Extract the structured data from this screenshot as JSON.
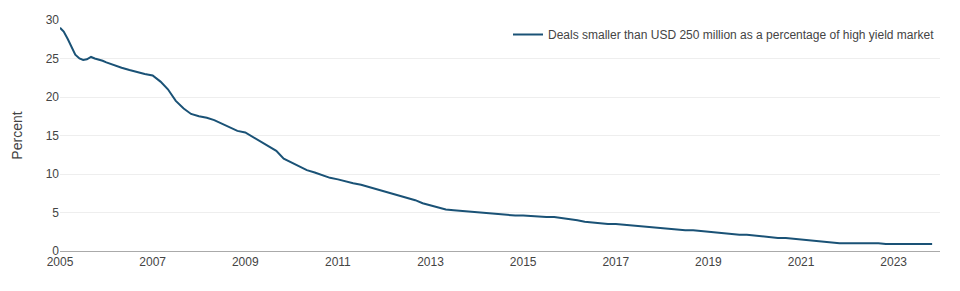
{
  "chart_data": {
    "type": "line",
    "ylabel": "Percent",
    "x": [
      2005.0,
      2005.08,
      2005.17,
      2005.25,
      2005.33,
      2005.42,
      2005.5,
      2005.58,
      2005.67,
      2005.75,
      2005.83,
      2005.92,
      2006.0,
      2006.17,
      2006.33,
      2006.5,
      2006.67,
      2006.83,
      2007.0,
      2007.17,
      2007.33,
      2007.5,
      2007.67,
      2007.83,
      2008.0,
      2008.17,
      2008.33,
      2008.5,
      2008.67,
      2008.83,
      2009.0,
      2009.17,
      2009.33,
      2009.5,
      2009.67,
      2009.83,
      2010.0,
      2010.17,
      2010.33,
      2010.5,
      2010.67,
      2010.83,
      2011.0,
      2011.17,
      2011.33,
      2011.5,
      2011.67,
      2011.83,
      2012.0,
      2012.17,
      2012.33,
      2012.5,
      2012.67,
      2012.83,
      2013.0,
      2013.17,
      2013.33,
      2013.5,
      2013.67,
      2013.83,
      2014.0,
      2014.17,
      2014.33,
      2014.5,
      2014.67,
      2014.83,
      2015.0,
      2015.17,
      2015.33,
      2015.5,
      2015.67,
      2015.83,
      2016.0,
      2016.17,
      2016.33,
      2016.5,
      2016.67,
      2016.83,
      2017.0,
      2017.17,
      2017.33,
      2017.5,
      2017.67,
      2017.83,
      2018.0,
      2018.17,
      2018.33,
      2018.5,
      2018.67,
      2018.83,
      2019.0,
      2019.17,
      2019.33,
      2019.5,
      2019.67,
      2019.83,
      2020.0,
      2020.17,
      2020.33,
      2020.5,
      2020.67,
      2020.83,
      2021.0,
      2021.17,
      2021.33,
      2021.5,
      2021.67,
      2021.83,
      2022.0,
      2022.17,
      2022.33,
      2022.5,
      2022.67,
      2022.83,
      2023.0,
      2023.17,
      2023.33,
      2023.5,
      2023.67,
      2023.83
    ],
    "series": [
      {
        "name": "Deals smaller than USD 250 million as a percentage of high yield market",
        "color": "#1a5276",
        "values": [
          29.0,
          28.5,
          27.5,
          26.5,
          25.5,
          25.0,
          24.8,
          24.9,
          25.2,
          25.0,
          24.9,
          24.7,
          24.5,
          24.1,
          23.8,
          23.5,
          23.2,
          23.0,
          22.8,
          22.0,
          21.0,
          19.5,
          18.5,
          17.8,
          17.5,
          17.3,
          17.0,
          16.5,
          16.0,
          15.6,
          15.4,
          14.8,
          14.2,
          13.7,
          13.0,
          12.0,
          11.5,
          11.0,
          10.5,
          10.2,
          9.8,
          9.5,
          9.3,
          9.0,
          8.8,
          8.6,
          8.3,
          8.0,
          7.8,
          7.5,
          7.2,
          6.9,
          6.6,
          6.2,
          5.9,
          5.6,
          5.4,
          5.3,
          5.2,
          5.1,
          5.0,
          4.9,
          4.8,
          4.7,
          4.6,
          4.6,
          4.6,
          4.5,
          4.5,
          4.4,
          4.4,
          4.3,
          4.2,
          4.0,
          3.8,
          3.7,
          3.6,
          3.5,
          3.5,
          3.4,
          3.3,
          3.2,
          3.1,
          3.1,
          3.0,
          2.9,
          2.8,
          2.7,
          2.7,
          2.6,
          2.5,
          2.4,
          2.3,
          2.2,
          2.1,
          2.1,
          2.0,
          1.9,
          1.8,
          1.7,
          1.7,
          1.6,
          1.5,
          1.4,
          1.3,
          1.2,
          1.1,
          1.0,
          1.0,
          1.0,
          1.0,
          1.0,
          1.0,
          0.9,
          0.9,
          0.9,
          0.9,
          0.9,
          0.9,
          0.9
        ]
      }
    ],
    "xlim": [
      2005,
      2024.0
    ],
    "xticks": [
      2005,
      2007,
      2009,
      2011,
      2013,
      2015,
      2017,
      2019,
      2021,
      2023
    ],
    "ylim": [
      0,
      30
    ],
    "yticks": [
      0,
      5,
      10,
      15,
      20,
      25,
      30
    ],
    "grid": "y",
    "legend": "upper right"
  }
}
